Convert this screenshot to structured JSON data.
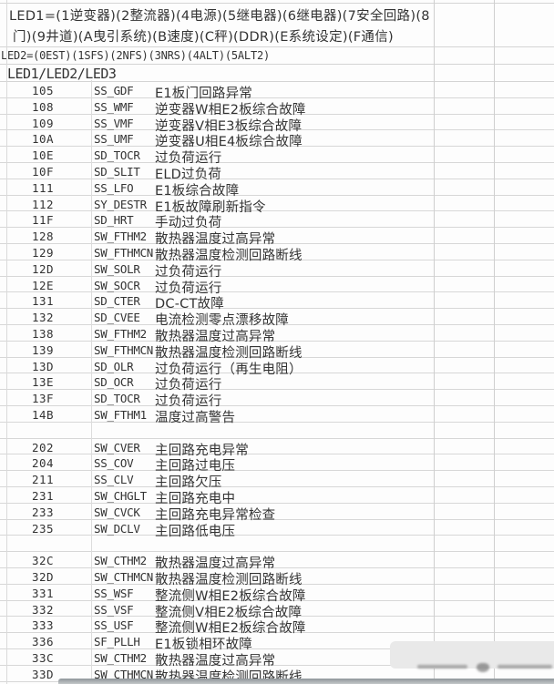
{
  "colors": {
    "background": "#fdfdfd",
    "gridline": "#d4d4d4",
    "text": "#333333",
    "watermark_bg": "#e9e9e9",
    "bottom_strip": "#9aa0a4"
  },
  "header": {
    "led1_line1": "LED1=(1逆变器)(2整流器)(4电源)(5继电器)(6继电器)(7安全回路)(8",
    "led1_line2": "门)(9井道)(A曳引系统)(B速度)(C秤)(DDR)(E系统设定)(F通信)",
    "led2_line": "LED2=(0EST)(1SFS)(2NFS)(3NRS)(4ALT)(5ALT2)",
    "led3_line": "LED1/LED2/LED3"
  },
  "table": {
    "rows": [
      {
        "code": "105",
        "signal": "SS_GDF",
        "desc": "E1板门回路异常"
      },
      {
        "code": "108",
        "signal": "SS_WMF",
        "desc": "逆变器W相E2板综合故障"
      },
      {
        "code": "109",
        "signal": "SS_VMF",
        "desc": "逆变器V相E3板综合故障"
      },
      {
        "code": "10A",
        "signal": "SS_UMF",
        "desc": "逆变器U相E4板综合故障"
      },
      {
        "code": "10E",
        "signal": "SD_TOCR",
        "desc": "过负荷运行"
      },
      {
        "code": "10F",
        "signal": "SD_SLIT",
        "desc": "ELD过负荷"
      },
      {
        "code": "111",
        "signal": "SS_LFO",
        "desc": "E1板综合故障"
      },
      {
        "code": "112",
        "signal": "SY_DESTR",
        "desc": "E1板故障刷新指令"
      },
      {
        "code": "11F",
        "signal": "SD_HRT",
        "desc": "手动过负荷"
      },
      {
        "code": "128",
        "signal": "SW_FTHM2",
        "desc": "散热器温度过高异常"
      },
      {
        "code": "129",
        "signal": "SW_FTHMCN",
        "desc": "散热器温度检测回路断线"
      },
      {
        "code": "12D",
        "signal": "SW_SOLR",
        "desc": "过负荷运行"
      },
      {
        "code": "12E",
        "signal": "SW_SOCR",
        "desc": "过负荷运行"
      },
      {
        "code": "131",
        "signal": "SD_CTER",
        "desc": "DC-CT故障"
      },
      {
        "code": "132",
        "signal": "SD_CVEE",
        "desc": "电流检测零点漂移故障"
      },
      {
        "code": "138",
        "signal": "SW_FTHM2",
        "desc": "散热器温度过高异常"
      },
      {
        "code": "139",
        "signal": "SW_FTHMCN",
        "desc": "散热器温度检测回路断线"
      },
      {
        "code": "13D",
        "signal": "SD_OLR",
        "desc": "过负荷运行（再生电阻）"
      },
      {
        "code": "13E",
        "signal": "SD_OCR",
        "desc": "过负荷运行"
      },
      {
        "code": "13F",
        "signal": "SD_TOCR",
        "desc": "过负荷运行"
      },
      {
        "code": "14B",
        "signal": "SW_FTHM1",
        "desc": "温度过高警告"
      },
      {
        "code": "",
        "signal": "",
        "desc": ""
      },
      {
        "code": "202",
        "signal": "SW_CVER",
        "desc": "主回路充电异常"
      },
      {
        "code": "204",
        "signal": "SS_COV",
        "desc": "主回路过电压"
      },
      {
        "code": "211",
        "signal": "SS_CLV",
        "desc": "主回路欠压"
      },
      {
        "code": "231",
        "signal": "SW_CHGLT",
        "desc": "主回路充电中"
      },
      {
        "code": "233",
        "signal": "SW_CVCK",
        "desc": "主回路充电异常检查"
      },
      {
        "code": "235",
        "signal": "SW_DCLV",
        "desc": "主回路低电压"
      },
      {
        "code": "",
        "signal": "",
        "desc": ""
      },
      {
        "code": "32C",
        "signal": "SW_CTHM2",
        "desc": "散热器温度过高异常"
      },
      {
        "code": "32D",
        "signal": "SW_CTHMCN",
        "desc": "散热器温度检测回路断线"
      },
      {
        "code": "331",
        "signal": "SS_WSF",
        "desc": "整流侧W相E2板综合故障"
      },
      {
        "code": "332",
        "signal": "SS_VSF",
        "desc": "整流侧V相E2板综合故障"
      },
      {
        "code": "333",
        "signal": "SS_USF",
        "desc": "整流侧W相E2板综合故障"
      },
      {
        "code": "336",
        "signal": "SF_PLLH",
        "desc": "E1板锁相环故障"
      },
      {
        "code": "33C",
        "signal": "SW_CTHM2",
        "desc": "散热器温度过高异常"
      },
      {
        "code": "33D",
        "signal": "SW_CTHMCN",
        "desc": "散热器温度检测回路断线"
      }
    ]
  }
}
